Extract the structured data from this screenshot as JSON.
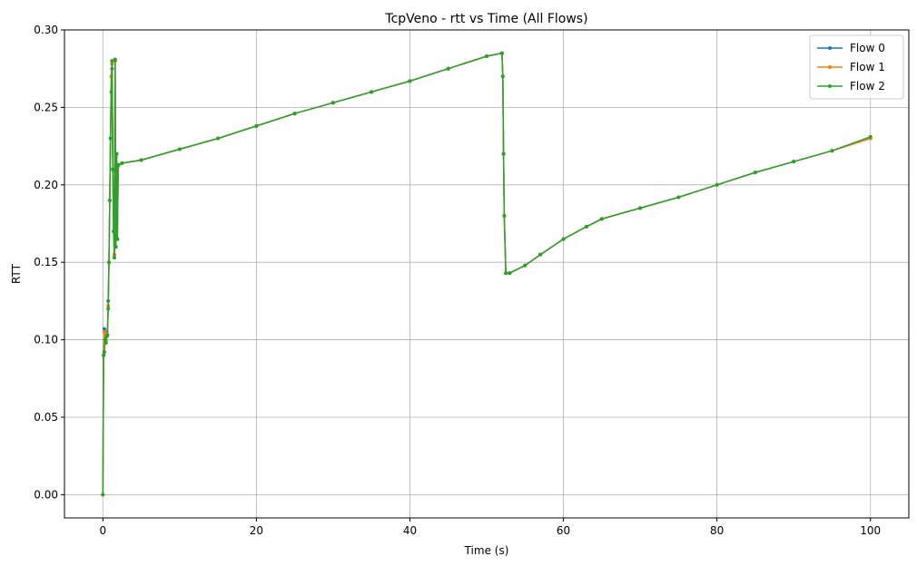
{
  "chart_data": {
    "type": "line",
    "title": "TcpVeno - rtt vs Time (All Flows)",
    "xlabel": "Time (s)",
    "ylabel": "RTT",
    "xlim": [
      -5,
      105
    ],
    "ylim": [
      -0.015,
      0.3
    ],
    "xticks": [
      0,
      20,
      40,
      60,
      80,
      100
    ],
    "yticks": [
      0.0,
      0.05,
      0.1,
      0.15,
      0.2,
      0.25,
      0.3
    ],
    "xtick_labels": [
      "0",
      "20",
      "40",
      "60",
      "80",
      "100"
    ],
    "ytick_labels": [
      "0.00",
      "0.05",
      "0.10",
      "0.15",
      "0.20",
      "0.25",
      "0.30"
    ],
    "grid": true,
    "legend_position": "top-right",
    "series": [
      {
        "name": "Flow 0",
        "color": "#1f77b4",
        "x": [
          0.0,
          0.1,
          0.2,
          0.3,
          0.4,
          0.5,
          0.6,
          0.7,
          0.8,
          0.9,
          1.0,
          1.1,
          1.2,
          1.3,
          1.4,
          1.5,
          1.6,
          1.7,
          1.8,
          1.9,
          2.0,
          2.5,
          5,
          10,
          15,
          20,
          25,
          30,
          35,
          40,
          45,
          50,
          52.0,
          52.1,
          52.2,
          52.3,
          52.5,
          53,
          55,
          57,
          60,
          63,
          65,
          70,
          75,
          80,
          85,
          90,
          95,
          100
        ],
        "y": [
          0.0,
          0.09,
          0.107,
          0.1,
          0.098,
          0.105,
          0.103,
          0.125,
          0.15,
          0.19,
          0.23,
          0.27,
          0.275,
          0.21,
          0.17,
          0.155,
          0.28,
          0.16,
          0.22,
          0.165,
          0.212,
          0.214,
          0.216,
          0.223,
          0.23,
          0.238,
          0.246,
          0.253,
          0.26,
          0.267,
          0.275,
          0.283,
          0.285,
          0.27,
          0.22,
          0.18,
          0.143,
          0.143,
          0.148,
          0.155,
          0.165,
          0.173,
          0.178,
          0.185,
          0.192,
          0.2,
          0.208,
          0.215,
          0.222,
          0.23
        ]
      },
      {
        "name": "Flow 1",
        "color": "#ff7f0e",
        "x": [
          0.0,
          0.1,
          0.2,
          0.3,
          0.4,
          0.5,
          0.6,
          0.7,
          0.8,
          0.9,
          1.0,
          1.1,
          1.2,
          1.3,
          1.4,
          1.5,
          1.6,
          1.7,
          1.8,
          1.9,
          2.0,
          2.5,
          5,
          10,
          15,
          20,
          25,
          30,
          35,
          40,
          45,
          50,
          52.0,
          52.1,
          52.2,
          52.3,
          52.5,
          53,
          55,
          57,
          60,
          63,
          65,
          70,
          75,
          80,
          85,
          90,
          95,
          100
        ],
        "y": [
          0.0,
          0.09,
          0.105,
          0.1,
          0.099,
          0.104,
          0.103,
          0.122,
          0.15,
          0.19,
          0.23,
          0.27,
          0.278,
          0.21,
          0.17,
          0.155,
          0.28,
          0.16,
          0.22,
          0.165,
          0.212,
          0.214,
          0.216,
          0.223,
          0.23,
          0.238,
          0.246,
          0.253,
          0.26,
          0.267,
          0.275,
          0.283,
          0.285,
          0.27,
          0.22,
          0.18,
          0.143,
          0.143,
          0.148,
          0.155,
          0.165,
          0.173,
          0.178,
          0.185,
          0.192,
          0.2,
          0.208,
          0.215,
          0.222,
          0.23
        ]
      },
      {
        "name": "Flow 2",
        "color": "#2ca02c",
        "x": [
          0.0,
          0.1,
          0.2,
          0.3,
          0.4,
          0.5,
          0.6,
          0.7,
          0.8,
          0.9,
          1.0,
          1.1,
          1.2,
          1.3,
          1.4,
          1.5,
          1.6,
          1.7,
          1.8,
          1.9,
          2.0,
          2.5,
          5,
          10,
          15,
          20,
          25,
          30,
          35,
          40,
          45,
          50,
          52.0,
          52.1,
          52.2,
          52.3,
          52.5,
          53,
          55,
          57,
          60,
          63,
          65,
          70,
          75,
          80,
          85,
          90,
          95,
          100
        ],
        "y": [
          0.0,
          0.09,
          0.092,
          0.1,
          0.098,
          0.102,
          0.103,
          0.12,
          0.15,
          0.19,
          0.23,
          0.26,
          0.28,
          0.21,
          0.17,
          0.153,
          0.281,
          0.16,
          0.22,
          0.165,
          0.213,
          0.214,
          0.216,
          0.223,
          0.23,
          0.238,
          0.246,
          0.253,
          0.26,
          0.267,
          0.275,
          0.283,
          0.285,
          0.27,
          0.22,
          0.18,
          0.143,
          0.143,
          0.148,
          0.155,
          0.165,
          0.173,
          0.178,
          0.185,
          0.192,
          0.2,
          0.208,
          0.215,
          0.222,
          0.231
        ]
      }
    ]
  }
}
